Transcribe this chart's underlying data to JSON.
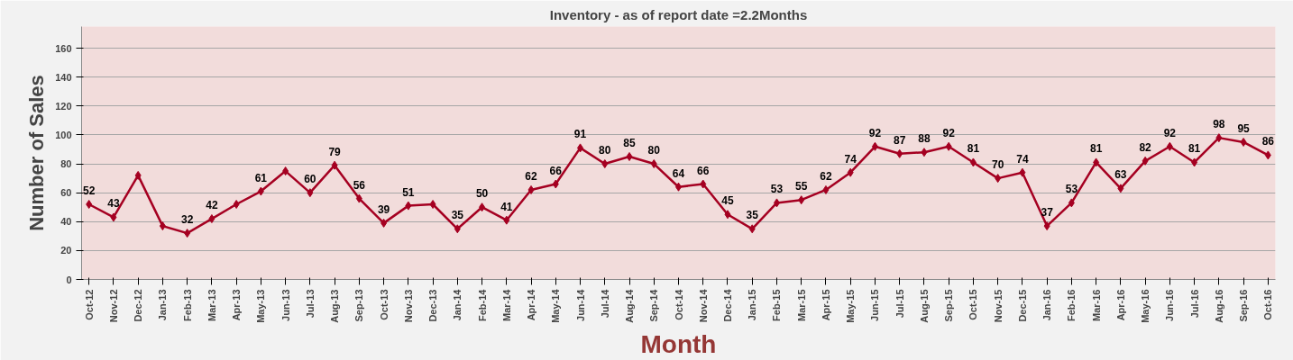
{
  "chart_data": {
    "type": "line",
    "title": "Inventory - as of report date =2.2Months",
    "xlabel": "Month",
    "ylabel": "Number of Sales",
    "categories": [
      "Oct-12",
      "Nov-12",
      "Dec-12",
      "Jan-13",
      "Feb-13",
      "Mar-13",
      "Apr-13",
      "May-13",
      "Jun-13",
      "Jul-13",
      "Aug-13",
      "Sep-13",
      "Oct-13",
      "Nov-13",
      "Dec-13",
      "Jan-14",
      "Feb-14",
      "Mar-14",
      "Apr-14",
      "May-14",
      "Jun-14",
      "Jul-14",
      "Aug-14",
      "Sep-14",
      "Oct-14",
      "Nov-14",
      "Dec-14",
      "Jan-15",
      "Feb-15",
      "Mar-15",
      "Apr-15",
      "May-15",
      "Jun-15",
      "Jul-15",
      "Aug-15",
      "Sep-15",
      "Oct-15",
      "Nov-15",
      "Dec-15",
      "Jan-16",
      "Feb-16",
      "Mar-16",
      "Apr-16",
      "May-16",
      "Jun-16",
      "Jul-16",
      "Aug-16",
      "Sep-16",
      "Oct-16"
    ],
    "series": [
      {
        "color": "#a50021",
        "values": [
          52,
          43,
          72,
          37,
          32,
          42,
          52,
          61,
          75,
          60,
          79,
          56,
          39,
          51,
          52,
          35,
          50,
          41,
          62,
          66,
          91,
          80,
          85,
          80,
          64,
          66,
          45,
          35,
          53,
          55,
          62,
          74,
          92,
          87,
          88,
          92,
          81,
          70,
          74,
          37,
          53,
          81,
          63,
          82,
          92,
          81,
          98,
          95,
          86
        ],
        "value_labels": [
          "52",
          "43",
          null,
          null,
          "32",
          "42",
          null,
          "61",
          null,
          "60",
          "79",
          "56",
          "39",
          "51",
          null,
          "35",
          "50",
          "41",
          "62",
          "66",
          "91",
          "80",
          "85",
          "80",
          "64",
          "66",
          "45",
          "35",
          "53",
          "55",
          "62",
          "74",
          "92",
          "87",
          "88",
          "92",
          "81",
          "70",
          "74",
          "37",
          "53",
          "81",
          "63",
          "82",
          "92",
          "81",
          "98",
          "95",
          "86"
        ]
      }
    ],
    "ylim": [
      0,
      175
    ],
    "yticks": [
      0,
      20,
      40,
      60,
      80,
      100,
      120,
      140,
      160
    ],
    "grid": "y",
    "marker": "diamond",
    "line_style": "solid"
  }
}
